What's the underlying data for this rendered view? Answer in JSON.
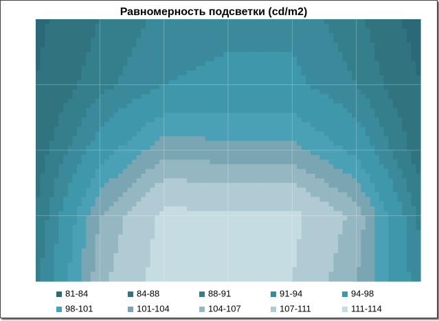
{
  "chart_data": {
    "type": "contour",
    "title": "Равномерность подсветки (cd/m2)",
    "bands": [
      {
        "name": "81-84",
        "min": 81,
        "max": 84,
        "color": "#2b6878"
      },
      {
        "name": "84-88",
        "min": 84,
        "max": 88,
        "color": "#31737f"
      },
      {
        "name": "88-91",
        "min": 88,
        "max": 91,
        "color": "#357f8d"
      },
      {
        "name": "91-94",
        "min": 91,
        "max": 94,
        "color": "#3a8a9b"
      },
      {
        "name": "94-98",
        "min": 94,
        "max": 98,
        "color": "#3f97aa"
      },
      {
        "name": "98-101",
        "min": 98,
        "max": 101,
        "color": "#4aa0b5"
      },
      {
        "name": "101-104",
        "min": 101,
        "max": 104,
        "color": "#7aa6b3"
      },
      {
        "name": "104-107",
        "min": 104,
        "max": 107,
        "color": "#95b7c2"
      },
      {
        "name": "107-111",
        "min": 107,
        "max": 111,
        "color": "#b0cbd3"
      },
      {
        "name": "111-114",
        "min": 111,
        "max": 114,
        "color": "#c5dce2"
      }
    ],
    "z": [
      [
        83,
        88,
        92,
        93,
        93,
        89,
        82
      ],
      [
        84,
        90,
        94,
        95,
        95,
        91,
        84
      ],
      [
        86,
        96,
        103,
        102,
        102,
        97,
        86
      ],
      [
        88,
        104,
        112,
        112,
        112,
        106,
        90
      ],
      [
        90,
        106,
        113,
        111,
        111,
        104,
        92
      ]
    ]
  }
}
